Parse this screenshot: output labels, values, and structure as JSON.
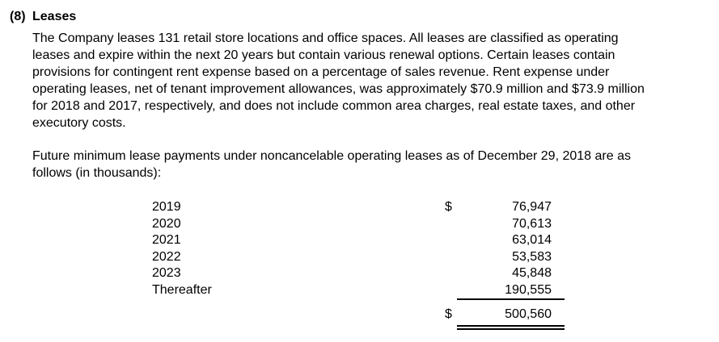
{
  "document": {
    "section_number": "(8)",
    "section_title": "Leases",
    "paragraph1": "The Company leases 131 retail store locations and office spaces. All leases are classified as operating\nleases and expire within the next 20 years but contain various renewal options. Certain leases contain\nprovisions for contingent rent expense based on a percentage of sales revenue. Rent expense under\noperating leases, net of tenant improvement allowances, was approximately $70.9 million and $73.9 million\nfor 2018 and 2017, respectively, and does not include common area charges, real estate taxes, and other\nexecutory costs.",
    "paragraph2": "Future minimum lease payments under noncancelable operating leases as of December 29, 2018 are as\nfollows (in thousands):",
    "table": {
      "unit_note": "in thousands",
      "rows": [
        {
          "label": "2019",
          "currency": "$",
          "amount": "76,947"
        },
        {
          "label": "2020",
          "currency": "",
          "amount": "70,613"
        },
        {
          "label": "2021",
          "currency": "",
          "amount": "63,014"
        },
        {
          "label": "2022",
          "currency": "",
          "amount": "53,583"
        },
        {
          "label": "2023",
          "currency": "",
          "amount": "45,848"
        },
        {
          "label": "Thereafter",
          "currency": "",
          "amount": "190,555"
        }
      ],
      "total": {
        "currency": "$",
        "amount": "500,560"
      }
    },
    "colors": {
      "text": "#000000",
      "background": "#ffffff"
    }
  }
}
